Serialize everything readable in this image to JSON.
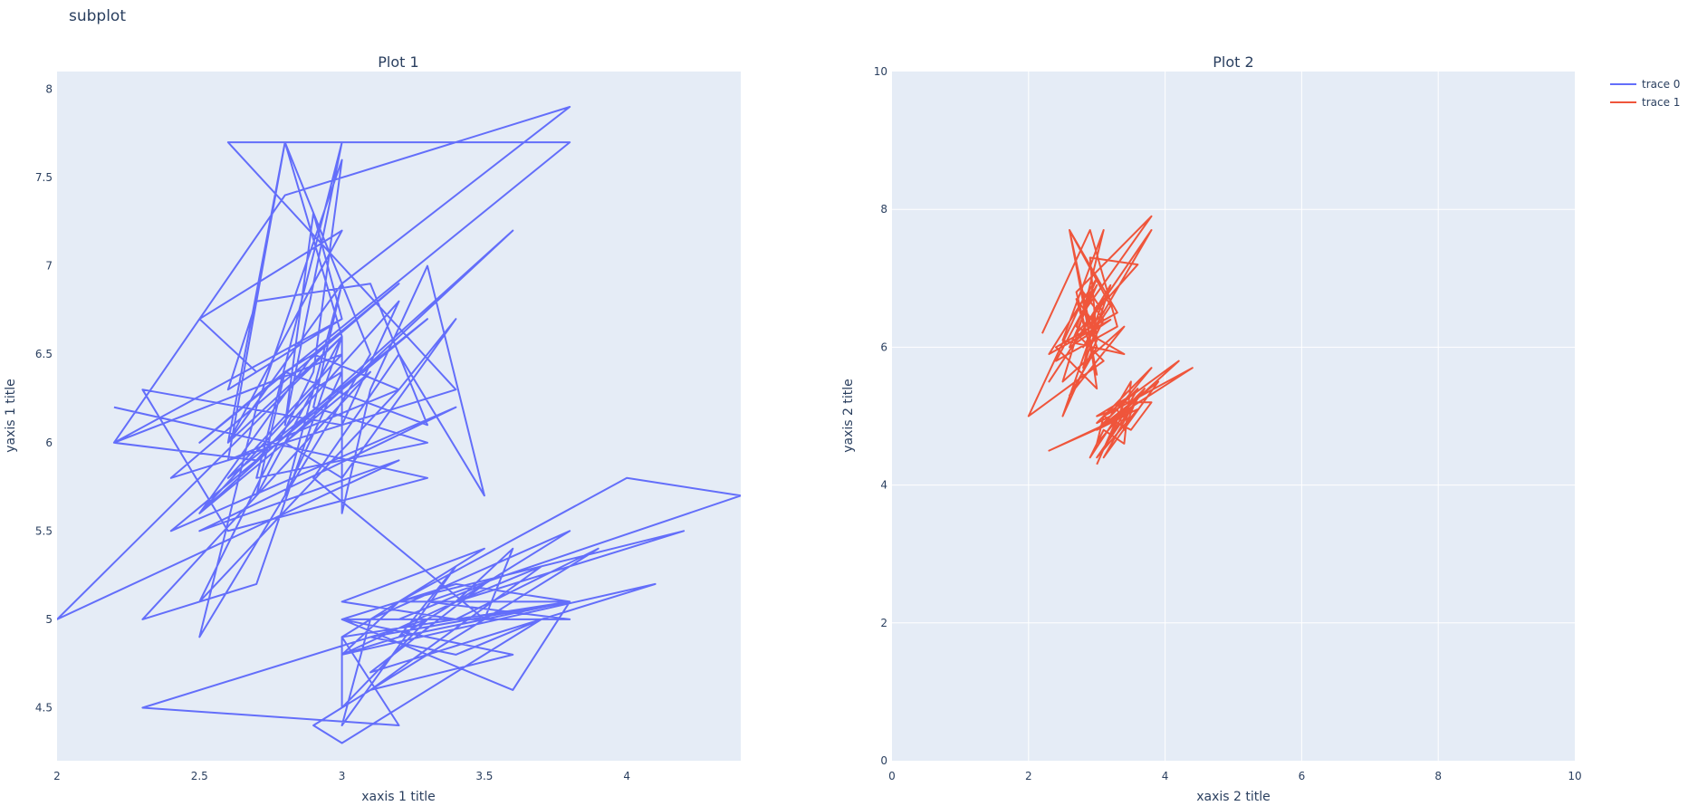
{
  "page": {
    "title": "subplot"
  },
  "legend": {
    "placement": "top-right",
    "items": [
      "trace 0",
      "trace 1"
    ]
  },
  "chart_data": [
    {
      "type": "line",
      "title": "Plot 1",
      "xlabel": "xaxis 1 title",
      "ylabel": "yaxis 1 title",
      "xlim": [
        2,
        4.4
      ],
      "ylim": [
        4.2,
        8.1
      ],
      "grid": false,
      "background": "#e5ecf6",
      "xticks": [
        "2",
        "2.5",
        "3",
        "3.5",
        "4"
      ],
      "xtick_values": [
        2,
        2.5,
        3,
        3.5,
        4
      ],
      "yticks": [
        "4.5",
        "5",
        "5.5",
        "6",
        "6.5",
        "7",
        "7.5",
        "8"
      ],
      "ytick_values": [
        4.5,
        5,
        5.5,
        6,
        6.5,
        7,
        7.5,
        8
      ],
      "series": [
        {
          "name": "trace 0",
          "color": "#636efa",
          "x": [
            2.2,
            3.3,
            2.6,
            2.3,
            3.0,
            3.2,
            2.7,
            2.2,
            3.0,
            2.6,
            2.7,
            3.1,
            3.3,
            2.8,
            2.5,
            3.8,
            2.6,
            3.4,
            2.4,
            3.2,
            2.9,
            2.5,
            3.1,
            2.3,
            2.7,
            3.0,
            2.8,
            2.6,
            3.2,
            2.5,
            2.9,
            3.0,
            2.7,
            2.5,
            3.1,
            2.8,
            2.6,
            3.0,
            2.9,
            3.3,
            2.7,
            3.0,
            2.8,
            2.9,
            3.0,
            2.7,
            2.5,
            3.0,
            2.6,
            2.8,
            3.0,
            2.7,
            2.8,
            2.9,
            3.2,
            3.4,
            3.0,
            2.8,
            3.6,
            2.5,
            2.9,
            3.0,
            2.8,
            3.0,
            3.8,
            2.8,
            2.2,
            3.0,
            2.6,
            3.3,
            2.4,
            3.4,
            2.5,
            3.2,
            2.0,
            3.0,
            3.0,
            3.1,
            3.3,
            3.5,
            3.2,
            2.9,
            3.5,
            3.1,
            3.6,
            3.0,
            3.4,
            3.8,
            3.2,
            4.0,
            4.4,
            3.3,
            3.8,
            3.0,
            3.6,
            3.8,
            3.1,
            3.4,
            3.7,
            3.0,
            2.9,
            3.3,
            3.5,
            3.6,
            3.4,
            3.0,
            3.2,
            3.8,
            3.1,
            3.0,
            3.4,
            3.2,
            3.8,
            3.0,
            3.0,
            3.3,
            2.3,
            3.2,
            3.0,
            3.5,
            3.0,
            3.4,
            3.9,
            3.1,
            3.7,
            3.4,
            4.2,
            3.2,
            3.0,
            4.1,
            3.1,
            3.5,
            3.2,
            3.0
          ],
          "y": [
            6.2,
            5.8,
            5.5,
            6.3,
            6.1,
            6.8,
            5.9,
            6.0,
            6.7,
            6.3,
            6.8,
            6.9,
            6.1,
            6.4,
            6.0,
            7.7,
            7.7,
            6.3,
            5.8,
            6.9,
            6.5,
            5.6,
            6.4,
            5.0,
            5.2,
            6.6,
            7.7,
            5.9,
            6.3,
            5.1,
            6.4,
            7.6,
            6.2,
            4.9,
            6.5,
            7.7,
            6.0,
            6.9,
            6.2,
            6.0,
            5.8,
            7.7,
            6.1,
            7.3,
            6.7,
            6.4,
            6.7,
            7.2,
            6.0,
            6.3,
            6.6,
            5.7,
            6.4,
            6.5,
            6.3,
            6.7,
            5.8,
            6.0,
            7.2,
            5.6,
            6.3,
            6.4,
            5.7,
            6.9,
            7.9,
            7.4,
            6.0,
            6.5,
            5.8,
            6.7,
            5.5,
            6.2,
            5.5,
            5.9,
            5.0,
            6.6,
            5.6,
            6.3,
            7.0,
            5.7,
            6.5,
            5.8,
            5.0,
            4.6,
            4.8,
            5.0,
            5.2,
            5.1,
            5.1,
            5.8,
            5.7,
            5.1,
            5.0,
            5.0,
            4.6,
            5.1,
            4.9,
            4.8,
            5.0,
            4.3,
            4.4,
            4.8,
            5.0,
            5.4,
            5.1,
            4.8,
            4.9,
            5.5,
            5.0,
            4.4,
            5.3,
            4.9,
            5.1,
            4.9,
            4.5,
            5.0,
            4.5,
            4.4,
            4.9,
            5.4,
            5.1,
            5.0,
            5.4,
            4.6,
            5.3,
            5.1,
            5.5,
            5.1,
            4.8,
            5.2,
            4.7,
            5.2,
            5.0,
            5.0
          ]
        }
      ]
    },
    {
      "type": "line",
      "title": "Plot 2",
      "xlabel": "xaxis 2 title",
      "ylabel": "yaxis 2 title",
      "xlim": [
        0,
        10
      ],
      "ylim": [
        0,
        10
      ],
      "grid": true,
      "background": "#e5ecf6",
      "xticks": [
        "0",
        "2",
        "4",
        "6",
        "8",
        "10"
      ],
      "xtick_values": [
        0,
        2,
        4,
        6,
        8,
        10
      ],
      "yticks": [
        "0",
        "2",
        "4",
        "6",
        "8",
        "10"
      ],
      "ytick_values": [
        0,
        2,
        4,
        6,
        8,
        10
      ],
      "series": [
        {
          "name": "trace 1",
          "color": "#ef553b",
          "x": [
            2.2,
            2.9,
            3.3,
            2.4,
            3.0,
            2.6,
            3.2,
            2.3,
            3.0,
            2.7,
            3.4,
            2.5,
            3.1,
            2.8,
            3.8,
            2.7,
            3.0,
            2.6,
            3.2,
            2.8,
            3.8,
            2.9,
            2.3,
            3.1,
            2.5,
            3.0,
            2.9,
            3.6,
            2.7,
            3.1,
            2.0,
            2.8,
            3.0,
            2.6,
            3.4,
            2.5,
            2.9,
            3.1,
            2.7,
            3.2,
            2.8,
            3.0,
            2.9,
            2.6,
            3.3,
            2.4,
            3.0,
            2.8,
            3.1,
            2.9,
            2.7,
            3.0
          ],
          "y": [
            6.2,
            7.7,
            6.3,
            5.8,
            6.9,
            6.0,
            6.4,
            5.9,
            7.0,
            6.3,
            5.9,
            6.1,
            7.7,
            6.5,
            7.9,
            6.8,
            5.6,
            7.7,
            6.6,
            6.0,
            7.7,
            6.4,
            5.5,
            6.7,
            5.0,
            6.1,
            7.3,
            7.2,
            6.2,
            5.8,
            5.0,
            6.7,
            6.0,
            5.3,
            6.3,
            5.5,
            6.8,
            6.5,
            6.1,
            6.9,
            5.7,
            6.6,
            6.3,
            7.7,
            6.5,
            6.0,
            5.4,
            6.8,
            6.4,
            6.0,
            6.7,
            6.3
          ]
        },
        {
          "name": "trace 1",
          "color": "#ef553b",
          "x": [
            3.0,
            3.4,
            3.8,
            3.5,
            3.1,
            4.4,
            3.3,
            3.7,
            3.0,
            3.6,
            2.3,
            3.2,
            3.4,
            3.0,
            3.9,
            3.1,
            3.5,
            3.2,
            4.2,
            3.1,
            3.0,
            3.6,
            3.4,
            3.3,
            3.8,
            3.0,
            3.2,
            3.5,
            3.4,
            3.1,
            2.9,
            3.3,
            3.0,
            3.4,
            3.2,
            3.6,
            3.1,
            3.3,
            3.0,
            3.5
          ],
          "y": [
            4.3,
            5.2,
            5.2,
            4.8,
            5.0,
            5.7,
            5.0,
            5.4,
            4.4,
            5.1,
            4.5,
            4.9,
            5.0,
            4.8,
            5.5,
            4.4,
            5.1,
            4.9,
            5.8,
            5.0,
            4.6,
            5.3,
            4.8,
            5.1,
            5.7,
            4.9,
            5.0,
            5.5,
            4.6,
            4.8,
            4.4,
            5.0,
            4.8,
            5.2,
            4.7,
            5.4,
            4.9,
            5.1,
            5.0,
            5.3
          ]
        }
      ]
    }
  ]
}
